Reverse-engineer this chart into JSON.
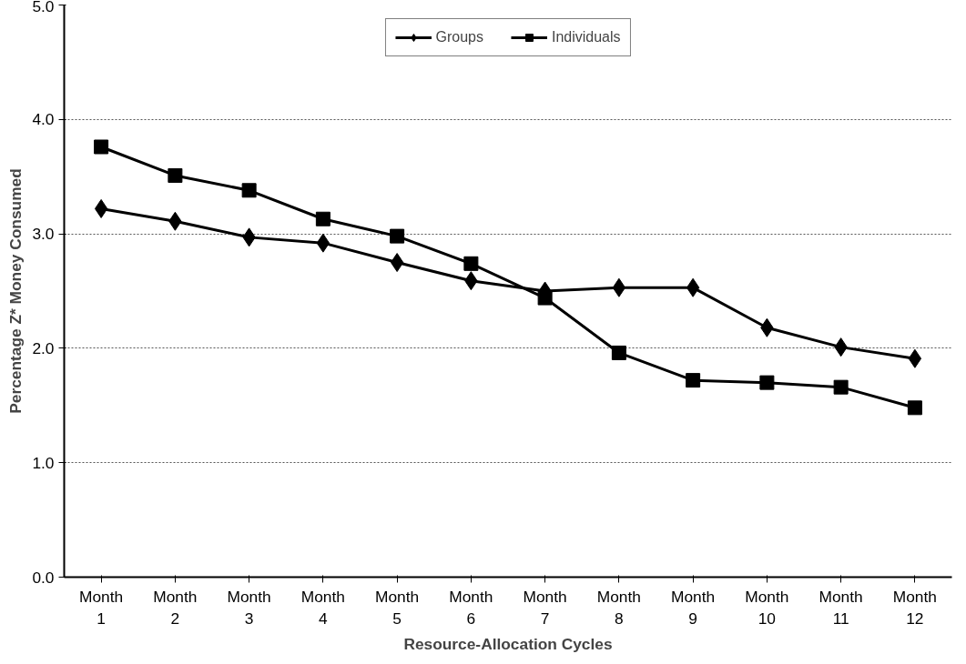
{
  "chart_data": {
    "type": "line",
    "xlabel": "Resource-Allocation Cycles",
    "ylabel": "Percentage Z* Money Consumed",
    "categories": [
      "Month\n1",
      "Month\n2",
      "Month\n3",
      "Month\n4",
      "Month\n5",
      "Month\n6",
      "Month\n7",
      "Month\n8",
      "Month\n9",
      "Month\n10",
      "Month\n11",
      "Month\n12"
    ],
    "series": [
      {
        "name": "Groups",
        "color": "#000000",
        "marker": "diamond",
        "values": [
          3.22,
          3.11,
          2.97,
          2.92,
          2.75,
          2.59,
          2.5,
          2.53,
          2.53,
          2.18,
          2.01,
          1.91
        ]
      },
      {
        "name": "Individuals",
        "color": "#000000",
        "marker": "square",
        "values": [
          3.76,
          3.51,
          3.38,
          3.13,
          2.98,
          2.74,
          2.44,
          1.96,
          1.72,
          1.7,
          1.66,
          1.48
        ]
      }
    ],
    "ylim": [
      0,
      5
    ],
    "yticks": [
      {
        "value": 0,
        "label": "0.0"
      },
      {
        "value": 1,
        "label": "1.0"
      },
      {
        "value": 2,
        "label": "2.0"
      },
      {
        "value": 3,
        "label": "3.0"
      },
      {
        "value": 4,
        "label": "4.0"
      },
      {
        "value": 5,
        "label": "5.0"
      }
    ],
    "grid": "y",
    "legend": "top",
    "line_style": "solid"
  }
}
